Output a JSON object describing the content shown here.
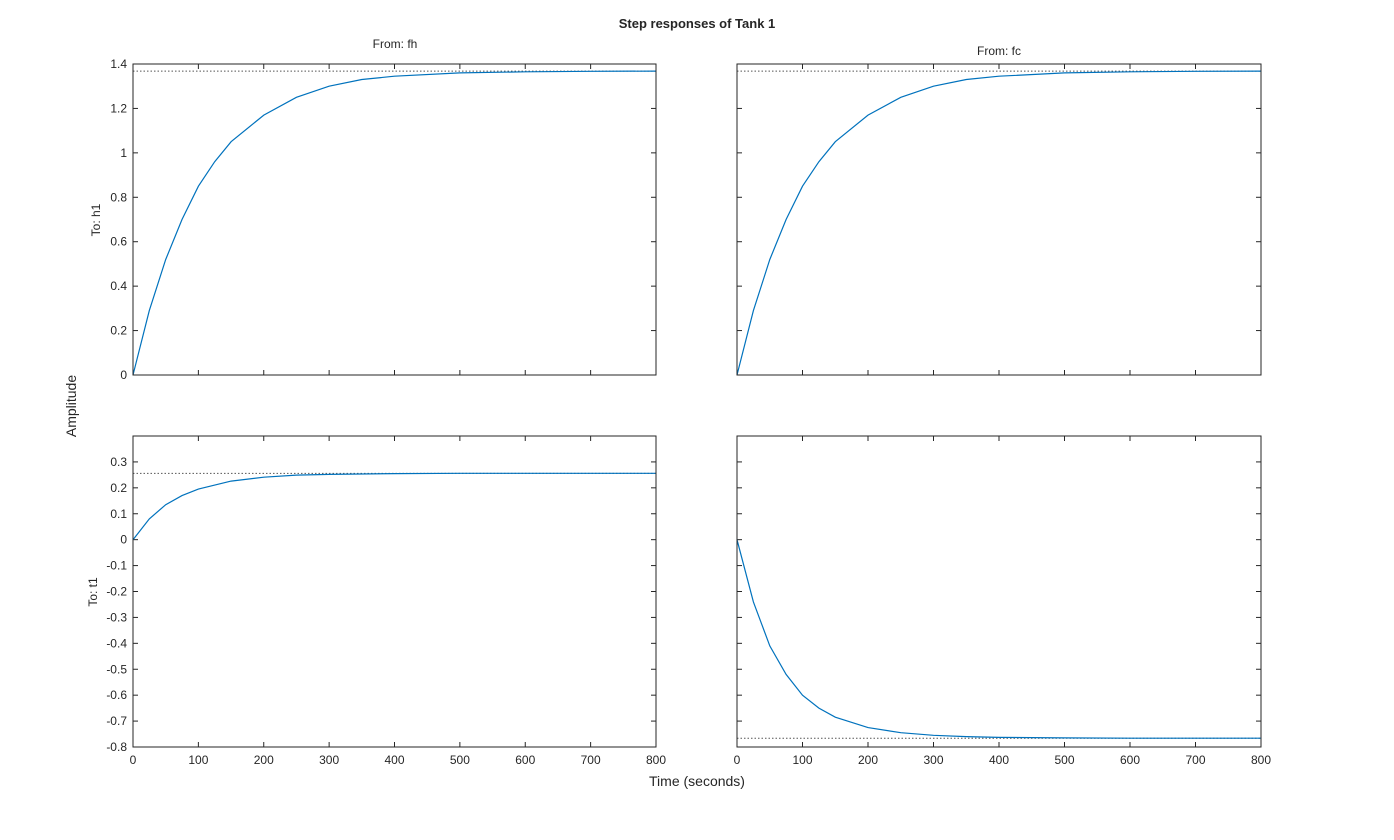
{
  "title": "Step responses of Tank 1",
  "xlabel": "Time (seconds)",
  "ylabel": "Amplitude",
  "inputs": [
    "From: fh",
    "From: fc"
  ],
  "outputs": [
    "To: h1",
    "To: t1"
  ],
  "colors": {
    "line": "#0072BD",
    "axes": "#262626",
    "steady": "#555555"
  },
  "chart_data": [
    {
      "type": "line",
      "row": 0,
      "col": 0,
      "input": "From: fh",
      "output": "To: h1",
      "xlim": [
        0,
        800
      ],
      "ylim": [
        0,
        1.4
      ],
      "xticks": [
        0,
        100,
        200,
        300,
        400,
        500,
        600,
        700,
        800
      ],
      "yticks": [
        0,
        0.2,
        0.4,
        0.6,
        0.8,
        1,
        1.2,
        1.4
      ],
      "show_xtick_labels": false,
      "show_ytick_labels": true,
      "series": [
        {
          "x": [
            0,
            25,
            50,
            75,
            100,
            125,
            150,
            200,
            250,
            300,
            350,
            400,
            500,
            600,
            700,
            800
          ],
          "y": [
            0,
            0.29,
            0.52,
            0.7,
            0.85,
            0.96,
            1.05,
            1.17,
            1.25,
            1.3,
            1.33,
            1.345,
            1.36,
            1.365,
            1.367,
            1.368
          ]
        }
      ],
      "steady_state": 1.368
    },
    {
      "type": "line",
      "row": 0,
      "col": 1,
      "input": "From: fc",
      "output": "To: h1",
      "xlim": [
        0,
        800
      ],
      "ylim": [
        0,
        1.4
      ],
      "xticks": [
        0,
        100,
        200,
        300,
        400,
        500,
        600,
        700,
        800
      ],
      "yticks": [
        0,
        0.2,
        0.4,
        0.6,
        0.8,
        1,
        1.2,
        1.4
      ],
      "show_xtick_labels": false,
      "show_ytick_labels": false,
      "series": [
        {
          "x": [
            0,
            25,
            50,
            75,
            100,
            125,
            150,
            200,
            250,
            300,
            350,
            400,
            500,
            600,
            700,
            800
          ],
          "y": [
            0,
            0.29,
            0.52,
            0.7,
            0.85,
            0.96,
            1.05,
            1.17,
            1.25,
            1.3,
            1.33,
            1.345,
            1.36,
            1.365,
            1.367,
            1.368
          ]
        }
      ],
      "steady_state": 1.368
    },
    {
      "type": "line",
      "row": 1,
      "col": 0,
      "input": "From: fh",
      "output": "To: t1",
      "xlim": [
        0,
        800
      ],
      "ylim": [
        -0.8,
        0.4
      ],
      "xticks": [
        0,
        100,
        200,
        300,
        400,
        500,
        600,
        700,
        800
      ],
      "yticks": [
        -0.8,
        -0.7,
        -0.6,
        -0.5,
        -0.4,
        -0.3,
        -0.2,
        -0.1,
        0,
        0.1,
        0.2,
        0.3
      ],
      "show_xtick_labels": true,
      "show_ytick_labels": true,
      "series": [
        {
          "x": [
            0,
            25,
            50,
            75,
            100,
            150,
            200,
            250,
            300,
            400,
            500,
            600,
            700,
            800
          ],
          "y": [
            0,
            0.08,
            0.135,
            0.17,
            0.195,
            0.226,
            0.241,
            0.249,
            0.252,
            0.255,
            0.256,
            0.256,
            0.256,
            0.256
          ]
        }
      ],
      "steady_state": 0.256
    },
    {
      "type": "line",
      "row": 1,
      "col": 1,
      "input": "From: fc",
      "output": "To: t1",
      "xlim": [
        0,
        800
      ],
      "ylim": [
        -0.8,
        0.4
      ],
      "xticks": [
        0,
        100,
        200,
        300,
        400,
        500,
        600,
        700,
        800
      ],
      "yticks": [
        -0.8,
        -0.7,
        -0.6,
        -0.5,
        -0.4,
        -0.3,
        -0.2,
        -0.1,
        0,
        0.1,
        0.2,
        0.3
      ],
      "show_xtick_labels": true,
      "show_ytick_labels": false,
      "series": [
        {
          "x": [
            0,
            25,
            50,
            75,
            100,
            125,
            150,
            200,
            250,
            300,
            350,
            400,
            500,
            600,
            700,
            800
          ],
          "y": [
            0,
            -0.24,
            -0.41,
            -0.52,
            -0.6,
            -0.65,
            -0.685,
            -0.725,
            -0.745,
            -0.755,
            -0.76,
            -0.763,
            -0.765,
            -0.766,
            -0.766,
            -0.766
          ]
        }
      ],
      "steady_state": -0.766
    }
  ]
}
